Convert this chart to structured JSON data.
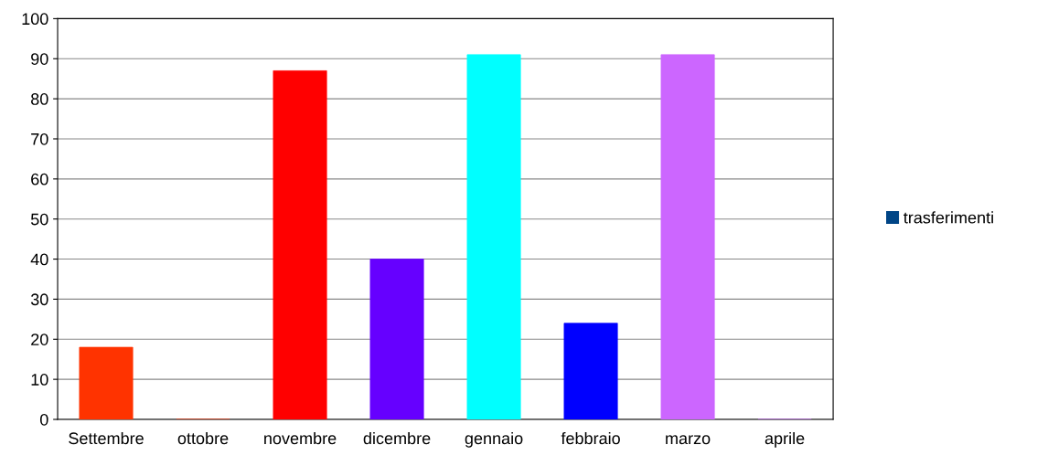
{
  "chart_data": {
    "type": "bar",
    "categories": [
      "Settembre",
      "ottobre",
      "novembre",
      "dicembre",
      "gennaio",
      "febbraio",
      "marzo",
      "aprile"
    ],
    "series": [
      {
        "name": "trasferimenti",
        "color": "#004586",
        "colors": [
          "#ff3300",
          "#ff3300",
          "#ff0000",
          "#6600ff",
          "#00ffff",
          "#0000ff",
          "#cc66ff",
          "#cc66ff"
        ],
        "values": [
          18,
          0,
          87,
          40,
          91,
          24,
          91,
          0
        ]
      }
    ],
    "ylim": [
      0,
      100
    ],
    "yticks": [
      0,
      10,
      20,
      30,
      40,
      50,
      60,
      70,
      80,
      90,
      100
    ],
    "grid": "y",
    "legend": "right"
  }
}
